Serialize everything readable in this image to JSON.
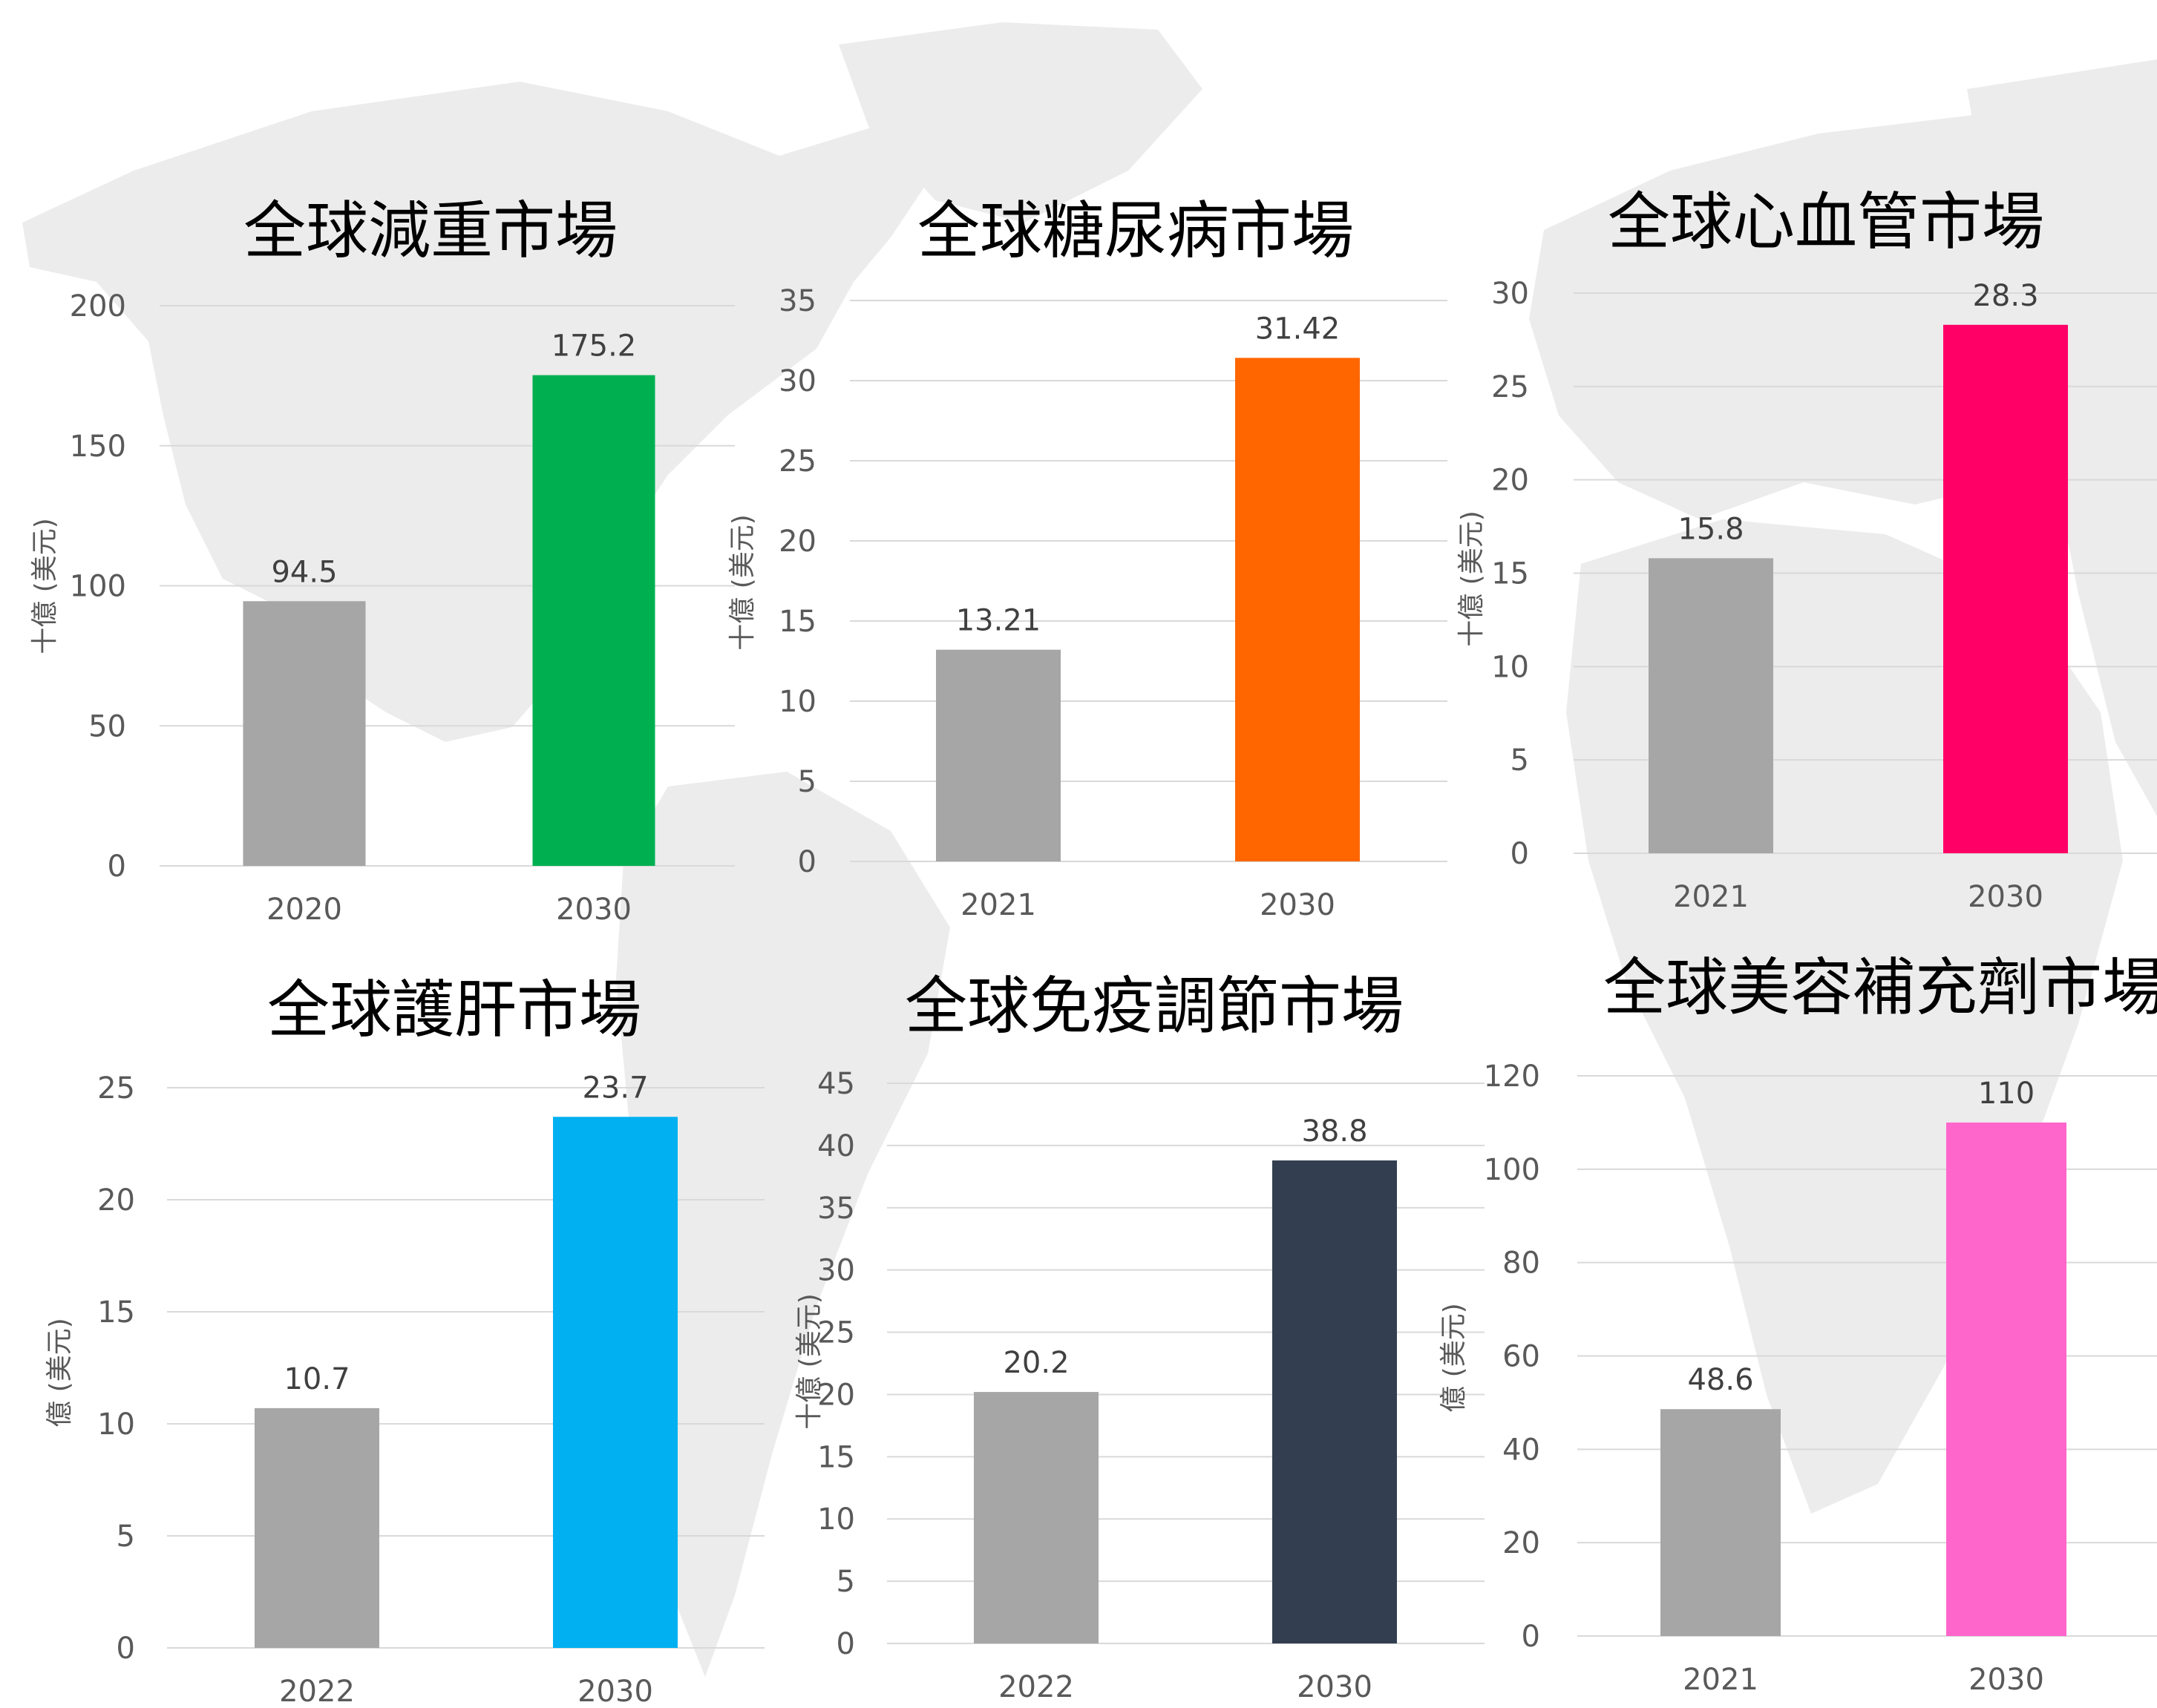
{
  "chart_data": [
    {
      "type": "bar",
      "title": "全球減重市場",
      "ylabel": "十億 (美元)",
      "categories": [
        "2020",
        "2030"
      ],
      "values": [
        94.5,
        175.2
      ],
      "data_labels": [
        "94.5",
        "175.2"
      ],
      "ylim": [
        0,
        200
      ],
      "yticks": [
        0,
        50,
        100,
        150,
        200
      ],
      "colors": [
        "#a6a6a6",
        "#00b050"
      ],
      "grid": true
    },
    {
      "type": "bar",
      "title": "全球糖尿病市場",
      "ylabel": "十億 (美元)",
      "categories": [
        "2021",
        "2030"
      ],
      "values": [
        13.21,
        31.42
      ],
      "data_labels": [
        "13.21",
        "31.42"
      ],
      "ylim": [
        0,
        35
      ],
      "yticks": [
        0,
        5,
        10,
        15,
        20,
        25,
        30,
        35
      ],
      "colors": [
        "#a6a6a6",
        "#ff6600"
      ],
      "grid": true
    },
    {
      "type": "bar",
      "title": "全球心血管市場",
      "ylabel": "十億 (美元)",
      "categories": [
        "2021",
        "2030"
      ],
      "values": [
        15.8,
        28.3
      ],
      "data_labels": [
        "15.8",
        "28.3"
      ],
      "ylim": [
        0,
        30
      ],
      "yticks": [
        0,
        5,
        10,
        15,
        20,
        25,
        30
      ],
      "colors": [
        "#a6a6a6",
        "#ff0066"
      ],
      "grid": true
    },
    {
      "type": "bar",
      "title": "全球護肝市場",
      "ylabel": "億 (美元)",
      "categories": [
        "2022",
        "2030"
      ],
      "values": [
        10.7,
        23.7
      ],
      "data_labels": [
        "10.7",
        "23.7"
      ],
      "ylim": [
        0,
        25
      ],
      "yticks": [
        0,
        5,
        10,
        15,
        20,
        25
      ],
      "colors": [
        "#a6a6a6",
        "#00b0f0"
      ],
      "grid": true
    },
    {
      "type": "bar",
      "title": "全球免疫調節市場",
      "ylabel": "十億 (美元)",
      "categories": [
        "2022",
        "2030"
      ],
      "values": [
        20.2,
        38.8
      ],
      "data_labels": [
        "20.2",
        "38.8"
      ],
      "ylim": [
        0,
        45
      ],
      "yticks": [
        0,
        5,
        10,
        15,
        20,
        25,
        30,
        35,
        40,
        45
      ],
      "colors": [
        "#a6a6a6",
        "#333f50"
      ],
      "grid": true
    },
    {
      "type": "bar",
      "title": "全球美容補充劑市場",
      "ylabel": "億 (美元)",
      "categories": [
        "2021",
        "2030"
      ],
      "values": [
        48.6,
        110
      ],
      "data_labels": [
        "48.6",
        "110"
      ],
      "ylim": [
        0,
        120
      ],
      "yticks": [
        0,
        20,
        40,
        60,
        80,
        100,
        120
      ],
      "colors": [
        "#a6a6a6",
        "#ff66cc"
      ],
      "grid": true
    }
  ],
  "background": {
    "map_color": "#ececec"
  }
}
